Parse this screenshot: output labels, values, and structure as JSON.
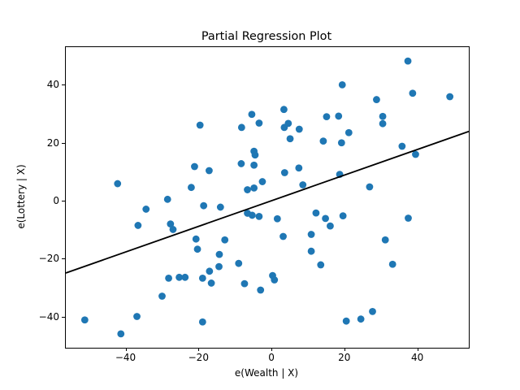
{
  "chart_data": {
    "type": "scatter",
    "title": "Partial Regression Plot",
    "xlabel": "e(Wealth | X)",
    "ylabel": "e(Lottery | X)",
    "xlim": [
      -56.6,
      53.9
    ],
    "ylim": [
      -50.6,
      53.1
    ],
    "xticks": [
      -40,
      -20,
      0,
      20,
      40
    ],
    "yticks": [
      -40,
      -20,
      0,
      20,
      40
    ],
    "grid": false,
    "legend": "none",
    "marker_color": "#1f77b4",
    "line_color": "#000000",
    "regression_line": {
      "slope": 0.442,
      "intercept": 0.2
    },
    "points": [
      [
        37.2,
        48.3
      ],
      [
        19.2,
        40.1
      ],
      [
        38.5,
        37.2
      ],
      [
        48.7,
        36.0
      ],
      [
        28.6,
        35.0
      ],
      [
        3.2,
        31.6
      ],
      [
        -5.6,
        29.9
      ],
      [
        14.9,
        29.1
      ],
      [
        18.2,
        29.3
      ],
      [
        30.3,
        29.2
      ],
      [
        30.3,
        26.7
      ],
      [
        -19.8,
        26.2
      ],
      [
        -8.4,
        25.4
      ],
      [
        -3.6,
        26.9
      ],
      [
        4.4,
        26.8
      ],
      [
        3.3,
        25.4
      ],
      [
        7.4,
        24.8
      ],
      [
        21.0,
        23.6
      ],
      [
        19.0,
        20.1
      ],
      [
        14.0,
        20.7
      ],
      [
        35.6,
        18.9
      ],
      [
        39.3,
        16.1
      ],
      [
        4.9,
        21.5
      ],
      [
        -5.0,
        17.2
      ],
      [
        -4.7,
        15.9
      ],
      [
        -8.5,
        12.9
      ],
      [
        -5.0,
        12.4
      ],
      [
        -21.3,
        11.9
      ],
      [
        -17.3,
        10.5
      ],
      [
        3.4,
        9.8
      ],
      [
        7.3,
        11.4
      ],
      [
        18.5,
        9.2
      ],
      [
        26.7,
        4.9
      ],
      [
        -2.7,
        6.7
      ],
      [
        8.4,
        5.6
      ],
      [
        -6.8,
        3.9
      ],
      [
        -5.0,
        4.5
      ],
      [
        -22.2,
        4.7
      ],
      [
        -42.4,
        6.0
      ],
      [
        -28.7,
        0.6
      ],
      [
        -18.8,
        -1.6
      ],
      [
        -14.2,
        -2.1
      ],
      [
        -34.6,
        -2.8
      ],
      [
        -6.8,
        -4.2
      ],
      [
        -5.5,
        -4.9
      ],
      [
        -3.6,
        -5.3
      ],
      [
        1.4,
        -6.1
      ],
      [
        12.0,
        -4.1
      ],
      [
        14.6,
        -6.0
      ],
      [
        19.4,
        -5.1
      ],
      [
        15.9,
        -8.6
      ],
      [
        37.3,
        -5.9
      ],
      [
        -36.8,
        -8.4
      ],
      [
        -27.9,
        -7.9
      ],
      [
        -27.2,
        -9.8
      ],
      [
        10.7,
        -11.5
      ],
      [
        3.0,
        -12.2
      ],
      [
        -13.0,
        -13.4
      ],
      [
        -20.9,
        -13.1
      ],
      [
        31.0,
        -13.4
      ],
      [
        -20.5,
        -16.6
      ],
      [
        10.7,
        -17.3
      ],
      [
        -14.5,
        -18.4
      ],
      [
        -14.6,
        -22.6
      ],
      [
        -9.2,
        -21.5
      ],
      [
        13.3,
        -22.0
      ],
      [
        33.0,
        -21.8
      ],
      [
        -17.2,
        -24.2
      ],
      [
        -28.4,
        -26.6
      ],
      [
        -25.5,
        -26.3
      ],
      [
        -23.9,
        -26.3
      ],
      [
        -19.1,
        -26.6
      ],
      [
        0.1,
        -25.7
      ],
      [
        0.6,
        -27.2
      ],
      [
        -16.7,
        -28.3
      ],
      [
        -7.6,
        -28.5
      ],
      [
        -3.2,
        -30.7
      ],
      [
        -30.2,
        -32.8
      ],
      [
        27.5,
        -38.1
      ],
      [
        -37.1,
        -39.8
      ],
      [
        -51.4,
        -41.0
      ],
      [
        24.3,
        -40.7
      ],
      [
        20.3,
        -41.4
      ],
      [
        -19.1,
        -41.7
      ],
      [
        -41.5,
        -45.8
      ]
    ]
  }
}
